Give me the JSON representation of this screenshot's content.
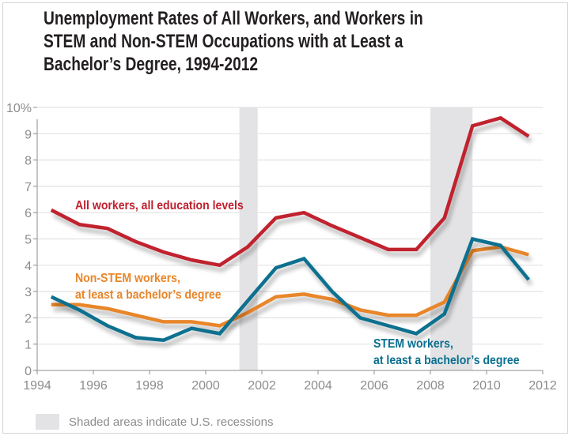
{
  "chart_data": {
    "type": "line",
    "title_lines": [
      "Unemployment Rates of All Workers, and Workers in",
      "STEM and Non-STEM Occupations with at Least a",
      "Bachelor’s Degree, 1994-2012"
    ],
    "x": [
      1994.5,
      1995.5,
      1996.5,
      1997.5,
      1998.5,
      1999.5,
      2000.5,
      2001.5,
      2002.5,
      2003.5,
      2004.5,
      2005.5,
      2006.5,
      2007.5,
      2008.5,
      2009.5,
      2010.5,
      2011.5
    ],
    "series": [
      {
        "name": "All workers, all education levels",
        "label_lines": [
          "All workers, all education levels"
        ],
        "color": "#c0202f",
        "values": [
          6.1,
          5.55,
          5.4,
          4.9,
          4.5,
          4.2,
          4.0,
          4.7,
          5.8,
          6.0,
          5.5,
          5.05,
          4.6,
          4.6,
          5.8,
          9.3,
          9.6,
          8.9
        ]
      },
      {
        "name": "Non-STEM workers, at least a bachelor's degree",
        "label_lines": [
          "Non-STEM workers,",
          "at least a bachelor’s degree"
        ],
        "color": "#e8862a",
        "values": [
          2.5,
          2.5,
          2.35,
          2.1,
          1.85,
          1.85,
          1.7,
          2.2,
          2.8,
          2.9,
          2.7,
          2.3,
          2.1,
          2.1,
          2.6,
          4.55,
          4.7,
          4.4
        ]
      },
      {
        "name": "STEM workers, at least a bachelor's degree",
        "label_lines": [
          "STEM workers,",
          "at least a bachelor’s degree"
        ],
        "color": "#0a6f8f",
        "values": [
          2.8,
          2.3,
          1.7,
          1.25,
          1.15,
          1.6,
          1.4,
          2.65,
          3.9,
          4.25,
          3.0,
          2.0,
          1.7,
          1.4,
          2.15,
          5.0,
          4.75,
          3.45
        ]
      }
    ],
    "recessions": [
      [
        2001.2,
        2001.85
      ],
      [
        2008.0,
        2009.5
      ]
    ],
    "xlim": [
      1994,
      2012
    ],
    "ylim": [
      0,
      10
    ],
    "xticks": [
      1994,
      1996,
      1998,
      2000,
      2002,
      2004,
      2006,
      2008,
      2010,
      2012
    ],
    "xtick_labels": [
      "1994",
      "1996",
      "1998",
      "2000",
      "2002",
      "2004",
      "2006",
      "2008",
      "2010",
      "2012"
    ],
    "yticks": [
      0,
      1,
      2,
      3,
      4,
      5,
      6,
      7,
      8,
      9,
      10
    ],
    "ytick_labels": [
      "0",
      "1",
      "2",
      "3",
      "4",
      "5",
      "6",
      "7",
      "8",
      "9",
      "10%"
    ],
    "grid": true,
    "recession_color": "#e3e3e5",
    "legend_text": "Shaded areas indicate U.S. recessions"
  }
}
